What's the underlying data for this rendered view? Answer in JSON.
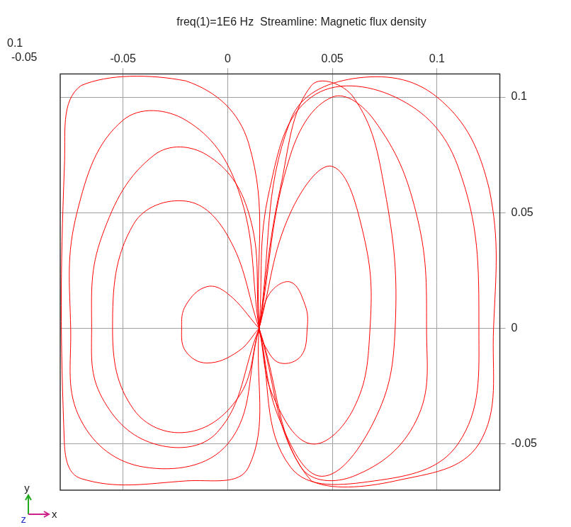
{
  "chart_data": {
    "type": "scatter",
    "title": "freq(1)=1E6 Hz  Streamline: Magnetic flux density",
    "xlabel": "x",
    "ylabel": "y",
    "zlabel": "z",
    "annotations": [
      {
        "text": "0.1"
      },
      {
        "text": "-0.05"
      }
    ],
    "xlim": [
      -0.08,
      0.13
    ],
    "ylim": [
      -0.07,
      0.11
    ],
    "xticks": [
      -0.05,
      0,
      0.05,
      0.1
    ],
    "yticks": [
      -0.05,
      0,
      0.05,
      0.1
    ],
    "grid": true,
    "marker": "none",
    "line_style": "solid",
    "series": [
      {
        "color": "#ff0000",
        "x": [
          0.015,
          0.02,
          0.04,
          0.08,
          0.11,
          0.12,
          0.11,
          0.07,
          0.03,
          0.015
        ],
        "values": [
          0,
          0.06,
          0.1,
          0.1,
          0.07,
          0.0,
          -0.05,
          -0.066,
          -0.06,
          0
        ]
      },
      {
        "color": "#ff0000",
        "x": [
          0.015,
          0.025,
          0.04,
          0.06,
          0.075,
          0.08,
          0.07,
          0.045,
          0.025,
          0.015
        ],
        "values": [
          0,
          0.06,
          0.105,
          0.1,
          0.06,
          0.0,
          -0.04,
          -0.064,
          -0.04,
          0
        ]
      },
      {
        "color": "#ff0000",
        "x": [
          0.015,
          0.03,
          0.05,
          0.065,
          0.068,
          0.06,
          0.04,
          0.022,
          0.015
        ],
        "values": [
          0,
          0.05,
          0.07,
          0.04,
          0.0,
          -0.035,
          -0.05,
          -0.03,
          0
        ]
      },
      {
        "color": "#ff0000",
        "x": [
          0.015,
          0.03,
          0.06,
          0.1,
          0.125,
          0.127,
          0.12,
          0.08,
          0.04,
          0.015
        ],
        "values": [
          0,
          0.09,
          0.108,
          0.1,
          0.06,
          0.0,
          -0.05,
          -0.066,
          -0.066,
          0
        ]
      },
      {
        "color": "#ff0000",
        "x": [
          0.015,
          0.03,
          0.05,
          0.07,
          0.09,
          0.095,
          0.09,
          0.06,
          0.035,
          0.015
        ],
        "values": [
          0,
          0.075,
          0.1,
          0.09,
          0.05,
          0.0,
          -0.04,
          -0.064,
          -0.06,
          0
        ]
      },
      {
        "color": "#ff0000",
        "x": [
          0.015,
          0.02,
          0.03,
          0.037,
          0.038,
          0.035,
          0.025,
          0.018,
          0.015
        ],
        "values": [
          0,
          0.015,
          0.02,
          0.01,
          0.0,
          -0.012,
          -0.015,
          -0.008,
          0
        ]
      },
      {
        "color": "#ff0000",
        "x": [
          0.015,
          0.005,
          -0.02,
          -0.05,
          -0.072,
          -0.075,
          -0.07,
          -0.04,
          0.0,
          0.015
        ],
        "values": [
          0,
          0.06,
          0.09,
          0.09,
          0.05,
          0.0,
          -0.04,
          -0.06,
          -0.05,
          0
        ]
      },
      {
        "color": "#ff0000",
        "x": [
          0.015,
          0.0,
          -0.02,
          -0.045,
          -0.055,
          -0.045,
          -0.02,
          0.005,
          0.015
        ],
        "values": [
          0,
          0.04,
          0.055,
          0.045,
          0.0,
          -0.035,
          -0.045,
          -0.03,
          0
        ]
      },
      {
        "color": "#ff0000",
        "x": [
          0.015,
          0.0,
          -0.01,
          -0.02,
          -0.022,
          -0.02,
          -0.01,
          0.005,
          0.015
        ],
        "values": [
          0,
          0.015,
          0.018,
          0.01,
          0.0,
          -0.01,
          -0.015,
          -0.01,
          0
        ]
      },
      {
        "color": "#ff0000",
        "x": [
          0.015,
          0.01,
          -0.02,
          -0.07,
          -0.078,
          -0.078,
          -0.07,
          -0.02,
          0.01,
          0.015
        ],
        "values": [
          0,
          0.08,
          0.107,
          0.105,
          0.07,
          -0.05,
          -0.065,
          -0.066,
          -0.06,
          0
        ]
      },
      {
        "color": "#ff0000",
        "x": [
          0.015,
          0.01,
          -0.01,
          -0.035,
          -0.06,
          -0.065,
          -0.06,
          -0.035,
          -0.005,
          0.015
        ],
        "values": [
          0,
          0.05,
          0.075,
          0.075,
          0.04,
          0.0,
          -0.03,
          -0.05,
          -0.045,
          0
        ]
      }
    ]
  }
}
